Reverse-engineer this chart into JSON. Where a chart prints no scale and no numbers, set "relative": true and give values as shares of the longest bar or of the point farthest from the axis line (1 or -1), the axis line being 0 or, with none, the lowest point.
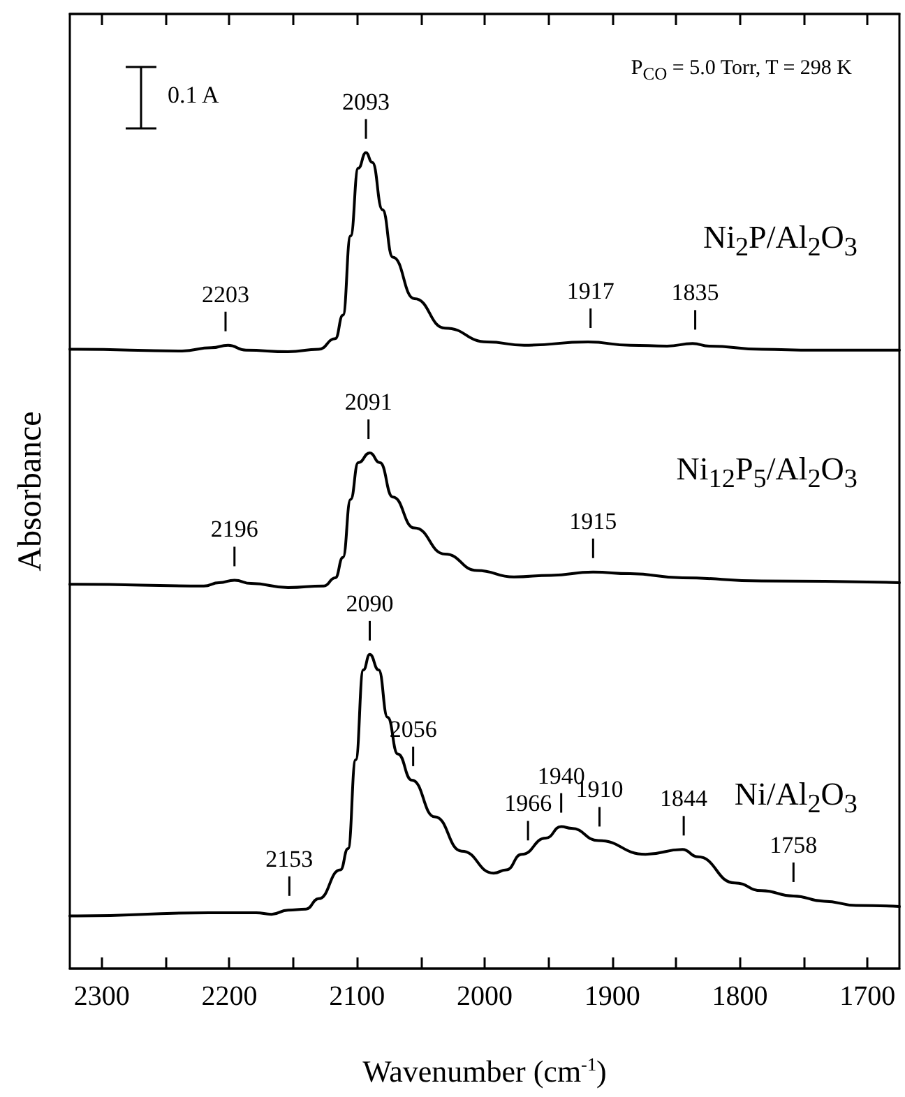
{
  "chart_data": {
    "type": "line",
    "relative": true,
    "xlabel": "Wavenumber (cm$^{-1}$)",
    "ylabel": "Absorbance",
    "xlim": [
      2325,
      1675
    ],
    "xticks": [
      2300,
      {
        "value": 2250,
        "label": null
      },
      2200,
      {
        "value": 2150,
        "label": null
      },
      2100,
      {
        "value": 2050,
        "label": null
      },
      2000,
      {
        "value": 1950,
        "label": null
      },
      1900,
      {
        "value": 1850,
        "label": null
      },
      1800,
      {
        "value": 1750,
        "label": null
      },
      1700
    ],
    "legend": false,
    "grid": false,
    "marker": "none",
    "line_style": "solid",
    "series": [
      {
        "name": "Ni$_{2}$P/Al$_{2}$O$_{3}$",
        "color": "#000000",
        "x": [
          2325,
          2319,
          2237,
          2214,
          2201,
          2187,
          2154,
          2130,
          2117,
          2111,
          2105,
          2099,
          2093,
          2088,
          2080,
          2072,
          2055,
          2031,
          1998,
          1969,
          1919,
          1886,
          1857,
          1837,
          1824,
          1783,
          1742,
          1675
        ],
        "values": [
          0.759,
          0.759,
          0.757,
          0.761,
          0.764,
          0.758,
          0.756,
          0.759,
          0.772,
          0.801,
          0.898,
          0.981,
          1,
          0.988,
          0.93,
          0.872,
          0.821,
          0.785,
          0.768,
          0.764,
          0.768,
          0.764,
          0.763,
          0.766,
          0.763,
          0.759,
          0.758,
          0.758
        ]
      },
      {
        "name": "Ni$_{12}$P$_{5}$/Al$_{2}$O$_{3}$",
        "color": "#000000",
        "x": [
          2325,
          2319,
          2220,
          2208,
          2196,
          2183,
          2154,
          2126,
          2117,
          2111,
          2105,
          2099,
          2090,
          2082,
          2072,
          2055,
          2031,
          2006,
          1977,
          1948,
          1915,
          1886,
          1845,
          1783,
          1675
        ],
        "values": [
          0.471,
          0.471,
          0.469,
          0.473,
          0.476,
          0.472,
          0.467,
          0.469,
          0.479,
          0.504,
          0.575,
          0.62,
          0.632,
          0.62,
          0.578,
          0.54,
          0.508,
          0.488,
          0.48,
          0.482,
          0.486,
          0.484,
          0.479,
          0.475,
          0.473
        ]
      },
      {
        "name": "Ni/Al$_{2}$O$_{3}$",
        "color": "#000000",
        "x": [
          2325,
          2319,
          2216,
          2179,
          2167,
          2154,
          2140,
          2130,
          2113,
          2107,
          2101,
          2095,
          2090,
          2083,
          2076,
          2068,
          2057,
          2039,
          2018,
          1993,
          1983,
          1971,
          1952,
          1940,
          1932,
          1911,
          1874,
          1845,
          1833,
          1804,
          1783,
          1758,
          1734,
          1709,
          1675
        ],
        "values": [
          0.0645,
          0.0645,
          0.0684,
          0.0684,
          0.0666,
          0.0717,
          0.0729,
          0.0857,
          0.121,
          0.147,
          0.256,
          0.366,
          0.385,
          0.366,
          0.308,
          0.263,
          0.231,
          0.186,
          0.144,
          0.117,
          0.121,
          0.14,
          0.16,
          0.174,
          0.172,
          0.157,
          0.14,
          0.146,
          0.137,
          0.105,
          0.0955,
          0.089,
          0.0826,
          0.0775,
          0.0761
        ]
      }
    ],
    "annotations": [
      "P$_{CO}$ = 5.0 Torr, T = 298 K",
      "0.1 A",
      {
        "text": "2203",
        "x": 2203,
        "y": 0.764
      },
      {
        "text": "2093",
        "x": 2093,
        "y": 1
      },
      {
        "text": "1917",
        "x": 1917,
        "y": 0.768
      },
      {
        "text": "1835",
        "x": 1835,
        "y": 0.766
      },
      {
        "text": "2196",
        "x": 2196,
        "y": 0.476
      },
      {
        "text": "2091",
        "x": 2091,
        "y": 0.632
      },
      {
        "text": "1915",
        "x": 1915,
        "y": 0.486
      },
      {
        "text": "2153",
        "x": 2153,
        "y": 0.072
      },
      {
        "text": "2090",
        "x": 2090,
        "y": 0.385
      },
      {
        "text": "2056",
        "x": 2056,
        "y": 0.231
      },
      {
        "text": "1966",
        "x": 1966,
        "y": 0.14
      },
      {
        "text": "1940",
        "x": 1940,
        "y": 0.174
      },
      {
        "text": "1910",
        "x": 1910,
        "y": 0.157
      },
      {
        "text": "1844",
        "x": 1844,
        "y": 0.146
      },
      {
        "text": "1758",
        "x": 1758,
        "y": 0.089
      }
    ]
  }
}
